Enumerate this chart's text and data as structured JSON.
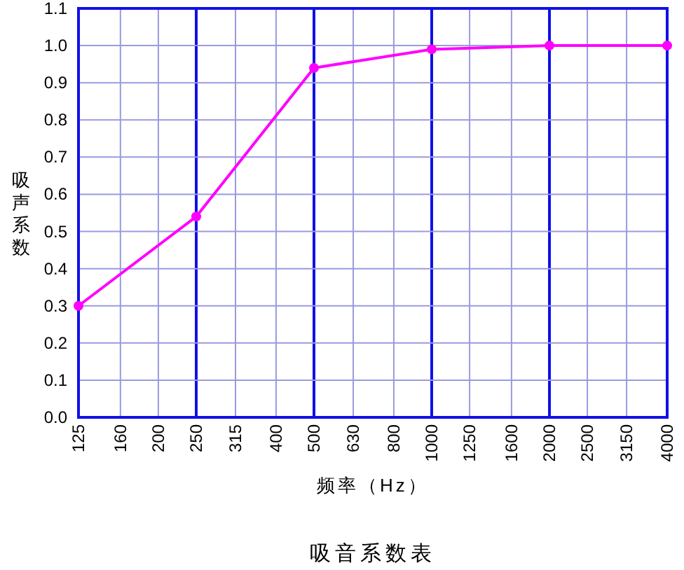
{
  "chart_data": {
    "type": "line",
    "title": "吸音系数表",
    "xlabel": "频率（Hz）",
    "ylabel": "吸声系数",
    "log": "x",
    "x": [
      125,
      250,
      500,
      1000,
      2000,
      4000
    ],
    "values": [
      0.3,
      0.54,
      0.94,
      0.99,
      1.0,
      1.0
    ],
    "color": "#ff00ff",
    "marker": "circle",
    "xlim": [
      125,
      4000
    ],
    "xticks": [
      125,
      160,
      200,
      250,
      315,
      400,
      500,
      630,
      800,
      1000,
      1250,
      1600,
      2000,
      2500,
      3150,
      4000
    ],
    "ylim": [
      0,
      1.1
    ],
    "yticks": [
      {
        "value": 0,
        "label": "0.0"
      },
      0.1,
      0.2,
      0.3,
      0.4,
      0.5,
      0.6,
      0.7,
      0.8,
      0.9,
      {
        "value": 1,
        "label": "1.0"
      },
      1.1
    ],
    "grid": true
  }
}
